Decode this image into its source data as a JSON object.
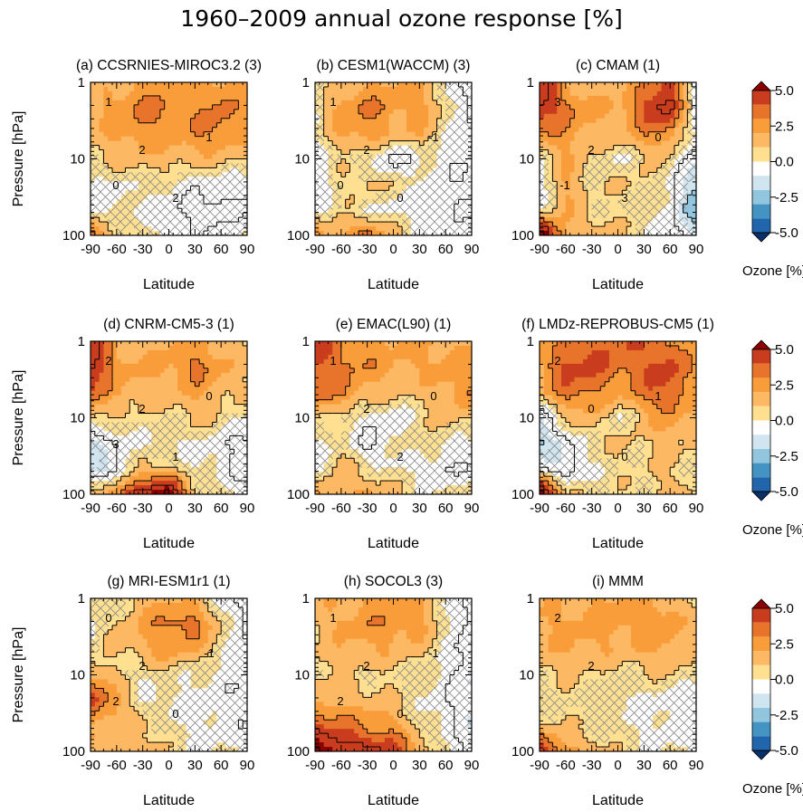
{
  "title": "1960–2009 annual ozone response [%]",
  "colors": {
    "scale": [
      "#08306b",
      "#2166ac",
      "#4393c3",
      "#92c5de",
      "#d1e5f0",
      "#ffffff",
      "#fee090",
      "#fdb863",
      "#f99d3a",
      "#e7742a",
      "#c93c1e",
      "#8b0000"
    ],
    "hatch": "#8a8a8a",
    "contour": "#000000"
  },
  "colorbar": {
    "ticks": [
      "5.0",
      "2.5",
      "0.0",
      "-2.5",
      "-5.0"
    ],
    "label": "Ozone [%]"
  },
  "axes": {
    "xlabel": "Latitude",
    "ylabel": "Pressure [hPa]",
    "xticks": [
      "-90",
      "-60",
      "-30",
      "0",
      "30",
      "60",
      "90"
    ],
    "yticks": [
      "1",
      "10",
      "100"
    ]
  },
  "chart_data": [
    {
      "type": "heatmap",
      "title": "(a) CCSRNIES-MIROC3.2 (3)",
      "x": [
        -90,
        90
      ],
      "y": [
        100,
        1
      ],
      "yscale": "log",
      "contour_labels": [
        "1",
        "2",
        "2",
        "1",
        "0"
      ],
      "pattern": [
        [
          1.0,
          1.3,
          1.6,
          1.8,
          1.7,
          1.6,
          1.5
        ],
        [
          1.3,
          1.8,
          2.2,
          1.9,
          1.8,
          2.2,
          1.6
        ],
        [
          1.2,
          1.6,
          2.0,
          1.8,
          1.9,
          2.1,
          1.5
        ],
        [
          0.9,
          1.2,
          1.3,
          1.2,
          1.3,
          1.2,
          0.9
        ],
        [
          0.4,
          0.3,
          0.7,
          0.6,
          0.2,
          0.3,
          0.2
        ],
        [
          0.3,
          0.5,
          0.4,
          0.1,
          -0.2,
          -0.4,
          0.1
        ],
        [
          2.5,
          1.0,
          0.8,
          0.3,
          0.2,
          0.3,
          0.6
        ]
      ]
    },
    {
      "type": "heatmap",
      "title": "(b) CESM1(WACCM) (3)",
      "x": [
        -90,
        90
      ],
      "y": [
        100,
        1
      ],
      "yscale": "log",
      "contour_labels": [
        "1",
        "2",
        "0",
        "-1",
        "0"
      ],
      "pattern": [
        [
          0.4,
          1.0,
          1.5,
          1.6,
          1.4,
          0.6,
          -0.6
        ],
        [
          0.6,
          1.8,
          2.1,
          1.7,
          1.8,
          0.9,
          -0.4
        ],
        [
          0.5,
          1.5,
          1.9,
          1.3,
          1.5,
          0.6,
          0.1
        ],
        [
          0.2,
          0.8,
          0.6,
          -0.3,
          0.4,
          0.2,
          0.1
        ],
        [
          0.1,
          0.9,
          1.2,
          0.8,
          0.6,
          0.2,
          0.0
        ],
        [
          0.3,
          0.8,
          0.5,
          0.3,
          0.2,
          0.1,
          0.1
        ],
        [
          1.8,
          1.5,
          2.4,
          1.2,
          0.5,
          0.3,
          0.2
        ]
      ]
    },
    {
      "type": "heatmap",
      "title": "(c) CMAM (1)",
      "x": [
        -90,
        90
      ],
      "y": [
        100,
        1
      ],
      "yscale": "log",
      "contour_labels": [
        "3",
        "2",
        "3",
        "0",
        "-1"
      ],
      "pattern": [
        [
          3.6,
          1.4,
          1.2,
          1.2,
          1.8,
          3.0,
          -0.4
        ],
        [
          3.1,
          2.3,
          1.6,
          1.5,
          2.6,
          3.4,
          0.0
        ],
        [
          2.0,
          1.8,
          1.4,
          1.2,
          1.9,
          2.0,
          0.2
        ],
        [
          0.6,
          1.5,
          0.9,
          0.4,
          1.0,
          0.9,
          -0.5
        ],
        [
          0.3,
          1.6,
          0.8,
          1.0,
          1.0,
          0.4,
          -1.2
        ],
        [
          0.5,
          1.4,
          1.0,
          0.8,
          0.6,
          0.2,
          -1.6
        ],
        [
          4.6,
          1.6,
          1.3,
          1.0,
          0.8,
          0.3,
          -0.5
        ]
      ]
    },
    {
      "type": "heatmap",
      "title": "(d) CNRM-CM5-3 (1)",
      "x": [
        -90,
        90
      ],
      "y": [
        100,
        1
      ],
      "yscale": "log",
      "contour_labels": [
        "2",
        "2",
        "1",
        "0",
        "3"
      ],
      "pattern": [
        [
          3.6,
          1.2,
          1.3,
          1.5,
          1.6,
          1.3,
          0.9
        ],
        [
          3.3,
          1.8,
          1.5,
          1.6,
          2.2,
          1.7,
          1.0
        ],
        [
          2.5,
          1.5,
          1.3,
          1.4,
          1.6,
          1.3,
          0.9
        ],
        [
          1.2,
          0.8,
          0.9,
          0.7,
          1.2,
          0.8,
          0.5
        ],
        [
          -0.8,
          0.2,
          0.5,
          0.4,
          0.5,
          0.2,
          -0.3
        ],
        [
          -0.9,
          -0.4,
          1.4,
          1.0,
          0.5,
          0.3,
          -0.4
        ],
        [
          1.3,
          2.2,
          3.5,
          4.2,
          1.1,
          0.6,
          0.3
        ]
      ]
    },
    {
      "type": "heatmap",
      "title": "(e) EMAC(L90) (1)",
      "x": [
        -90,
        90
      ],
      "y": [
        100,
        1
      ],
      "yscale": "log",
      "contour_labels": [
        "1",
        "2",
        "2",
        "0"
      ],
      "pattern": [
        [
          2.8,
          2.0,
          1.7,
          1.5,
          1.6,
          1.5,
          1.4
        ],
        [
          2.6,
          2.2,
          1.9,
          1.6,
          1.5,
          1.7,
          1.5
        ],
        [
          2.4,
          2.1,
          1.4,
          1.2,
          1.1,
          1.6,
          1.9
        ],
        [
          1.2,
          0.7,
          0.4,
          0.1,
          0.6,
          1.4,
          1.0
        ],
        [
          0.4,
          0.8,
          -0.2,
          0.4,
          0.9,
          0.5,
          0.2
        ],
        [
          0.3,
          1.2,
          0.8,
          0.5,
          0.4,
          -0.1,
          0.3
        ],
        [
          1.6,
          1.4,
          1.6,
          1.2,
          0.6,
          0.6,
          0.9
        ]
      ]
    },
    {
      "type": "heatmap",
      "title": "(f) LMDz-REPROBUS-CM5 (1)",
      "x": [
        -90,
        90
      ],
      "y": [
        100,
        1
      ],
      "yscale": "log",
      "contour_labels": [
        "2",
        "0",
        "0",
        "1"
      ],
      "pattern": [
        [
          1.4,
          1.9,
          2.4,
          2.6,
          2.3,
          2.1,
          1.5
        ],
        [
          1.5,
          2.8,
          2.6,
          2.2,
          2.4,
          2.8,
          1.6
        ],
        [
          1.2,
          2.3,
          2.1,
          1.6,
          2.2,
          2.6,
          1.5
        ],
        [
          -0.4,
          1.0,
          1.4,
          0.4,
          1.3,
          1.9,
          1.1
        ],
        [
          -1.2,
          -0.3,
          0.8,
          1.1,
          1.0,
          1.2,
          0.9
        ],
        [
          0.2,
          -0.6,
          0.5,
          0.8,
          0.9,
          1.0,
          0.8
        ],
        [
          4.6,
          1.3,
          0.8,
          0.8,
          0.9,
          1.2,
          1.0
        ]
      ]
    },
    {
      "type": "heatmap",
      "title": "(g) MRI-ESM1r1 (1)",
      "x": [
        -90,
        90
      ],
      "y": [
        100,
        1
      ],
      "yscale": "log",
      "contour_labels": [
        "0",
        "2",
        "0",
        "-1",
        "2"
      ],
      "pattern": [
        [
          0.4,
          0.7,
          1.3,
          1.4,
          1.2,
          0.4,
          -0.5
        ],
        [
          0.5,
          1.1,
          1.6,
          2.2,
          2.3,
          1.0,
          -0.3
        ],
        [
          0.6,
          1.0,
          1.4,
          1.8,
          1.5,
          0.8,
          0.1
        ],
        [
          1.6,
          0.9,
          0.6,
          0.8,
          0.5,
          0.3,
          0.2
        ],
        [
          3.1,
          1.7,
          0.5,
          0.3,
          0.4,
          0.2,
          0.1
        ],
        [
          1.5,
          1.2,
          1.3,
          0.6,
          0.4,
          0.3,
          0.2
        ],
        [
          1.2,
          1.4,
          1.2,
          0.9,
          0.4,
          0.5,
          0.5
        ]
      ]
    },
    {
      "type": "heatmap",
      "title": "(h) SOCOL3 (3)",
      "x": [
        -90,
        90
      ],
      "y": [
        100,
        1
      ],
      "yscale": "log",
      "contour_labels": [
        "1",
        "2",
        "0",
        "-1",
        "2"
      ],
      "pattern": [
        [
          1.2,
          1.4,
          1.6,
          1.7,
          1.6,
          0.6,
          -0.4
        ],
        [
          1.1,
          1.6,
          1.8,
          2.0,
          1.7,
          0.7,
          -0.5
        ],
        [
          1.0,
          1.3,
          1.5,
          1.4,
          1.2,
          0.5,
          -0.4
        ],
        [
          1.1,
          1.0,
          0.8,
          0.9,
          0.7,
          0.3,
          -0.5
        ],
        [
          1.5,
          1.4,
          1.3,
          1.0,
          0.6,
          0.1,
          -0.6
        ],
        [
          2.7,
          2.2,
          1.9,
          1.7,
          0.8,
          0.3,
          -0.4
        ],
        [
          4.2,
          3.6,
          3.4,
          2.8,
          1.6,
          0.6,
          -0.3
        ]
      ]
    },
    {
      "type": "heatmap",
      "title": "(i) MMM",
      "x": [
        -90,
        90
      ],
      "y": [
        100,
        1
      ],
      "yscale": "log",
      "contour_labels": [
        "2",
        "2"
      ],
      "pattern": [
        [
          1.3,
          1.4,
          1.5,
          1.6,
          1.6,
          1.3,
          0.8
        ],
        [
          1.5,
          1.6,
          1.7,
          1.7,
          1.8,
          1.9,
          1.0
        ],
        [
          1.3,
          1.5,
          1.5,
          1.4,
          1.5,
          1.6,
          0.9
        ],
        [
          1.0,
          1.0,
          0.9,
          0.8,
          0.9,
          1.0,
          0.6
        ],
        [
          0.6,
          0.8,
          0.7,
          0.5,
          0.4,
          0.3,
          0.3
        ],
        [
          1.2,
          0.9,
          0.8,
          0.6,
          0.4,
          0.3,
          0.3
        ],
        [
          3.2,
          1.8,
          1.2,
          0.9,
          0.6,
          0.5,
          0.5
        ]
      ]
    }
  ]
}
